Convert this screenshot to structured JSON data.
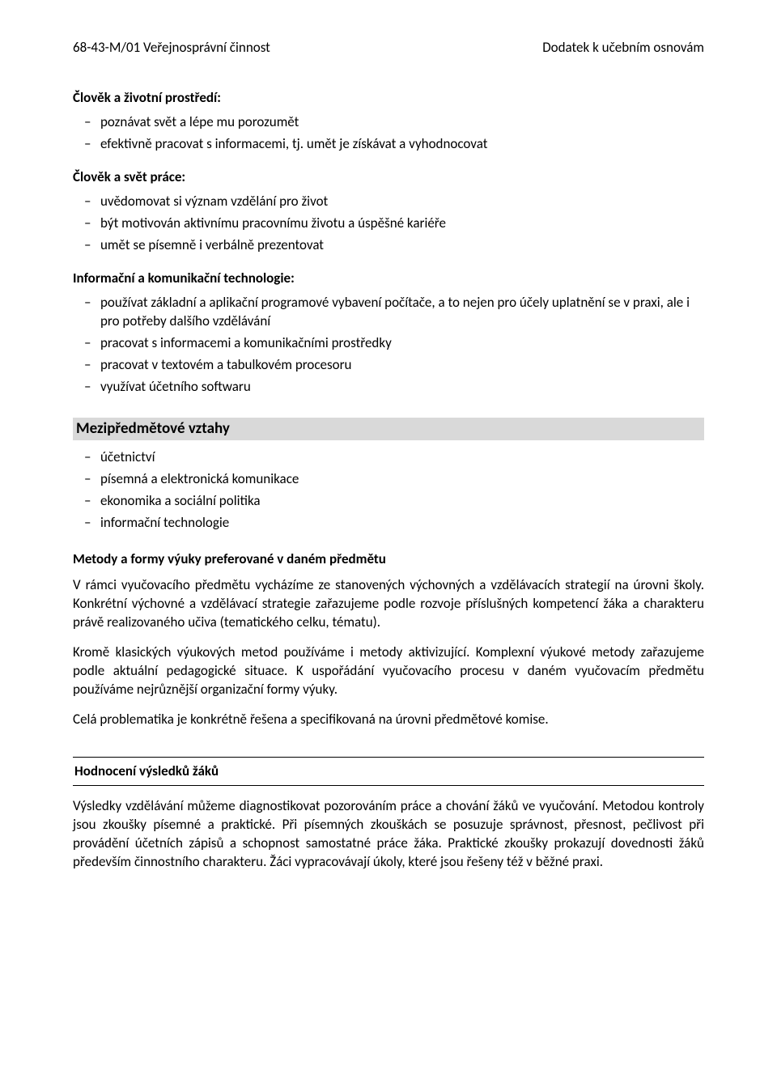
{
  "header": {
    "left": "68-43-M/01 Veřejnosprávní činnost",
    "right": "Dodatek k učebním osnovám"
  },
  "sections": {
    "env": {
      "title": "Člověk a životní prostředí:",
      "items": [
        "poznávat svět a lépe mu porozumět",
        "efektivně pracovat s informacemi, tj. umět je získávat a vyhodnocovat"
      ]
    },
    "work": {
      "title": "Člověk a svět práce:",
      "items": [
        "uvědomovat si význam vzdělání pro život",
        "být motivován aktivnímu pracovnímu životu a úspěšné kariéře",
        "umět se písemně i verbálně prezentovat"
      ]
    },
    "ict": {
      "title": "Informační a komunikační technologie:",
      "items": [
        "používat základní a aplikační programové vybavení počítače, a to nejen pro účely uplatnění se v praxi, ale i pro potřeby dalšího vzdělávání",
        "pracovat s informacemi a komunikačními prostředky",
        "pracovat v textovém a tabulkovém procesoru",
        "využívat účetního softwaru"
      ]
    },
    "mezipred": {
      "heading": "Mezipředmětové vztahy",
      "items": [
        "účetnictví",
        "písemná a elektronická komunikace",
        "ekonomika a sociální politika",
        "informační technologie"
      ]
    },
    "metody": {
      "heading": "Metody a formy výuky preferované v daném předmětu",
      "p1": "V rámci vyučovacího předmětu vycházíme ze stanovených výchovných a vzdělávacích strategií na úrovni školy. Konkrétní výchovné a vzdělávací strategie zařazujeme podle rozvoje příslušných kompetencí žáka a charakteru právě realizovaného učiva (tematického celku, tématu).",
      "p2": "Kromě klasických výukových metod používáme i metody aktivizující. Komplexní výukové metody zařazujeme podle aktuální pedagogické situace. K uspořádání vyučovacího procesu v daném vyučovacím předmětu používáme nejrůznější organizační formy výuky.",
      "p3": "Celá problematika je konkrétně řešena a specifikovaná na úrovni předmětové komise."
    },
    "hodnoceni": {
      "heading": "Hodnocení výsledků žáků",
      "p1": "Výsledky vzdělávání můžeme diagnostikovat pozorováním práce a chování žáků ve vyučování. Metodou kontroly jsou zkoušky písemné a praktické. Při písemných zkouškách se posuzuje správnost, přesnost, pečlivost při provádění účetních zápisů a schopnost samostatné práce žáka. Praktické zkoušky prokazují dovednosti žáků především činnostního charakteru. Žáci vypracovávají úkoly, které jsou řešeny též v běžné praxi."
    }
  },
  "colors": {
    "text": "#000000",
    "background": "#ffffff",
    "band_bg": "#d9d9d9",
    "border": "#000000"
  }
}
